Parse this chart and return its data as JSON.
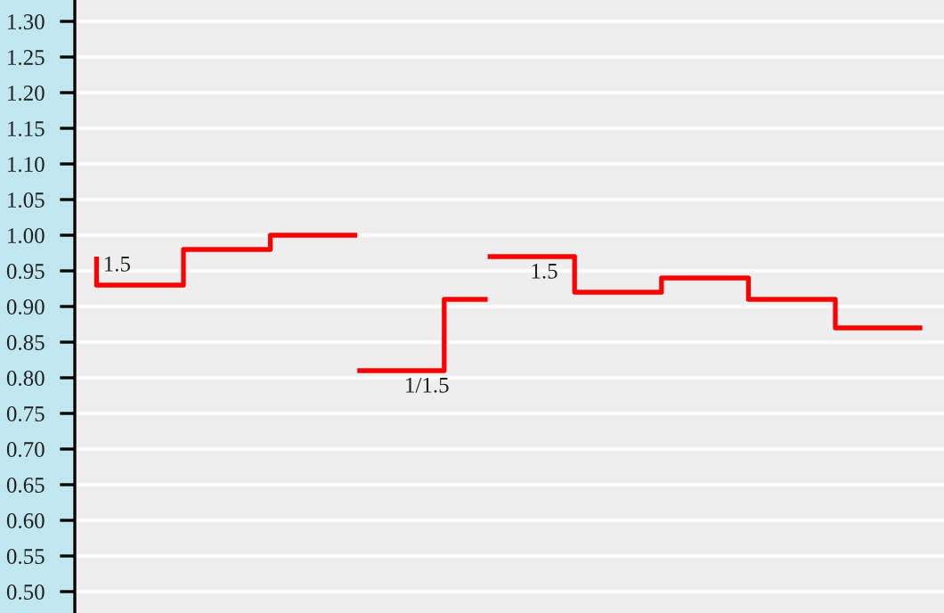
{
  "chart_data": {
    "type": "step",
    "categories": [
      null,
      null,
      null,
      null,
      null,
      null,
      null,
      null,
      null,
      null,
      null,
      null,
      null,
      null,
      null,
      null,
      null,
      null,
      null,
      null
    ],
    "series": [
      {
        "color": "#ff0000",
        "values": [
          0.97,
          0.93,
          0.93,
          0.98,
          0.98,
          1.0,
          1.0,
          null,
          null,
          null,
          null,
          null,
          null,
          null,
          null,
          null,
          null,
          null,
          null,
          null
        ]
      },
      {
        "color": "#ff0000",
        "values": [
          null,
          null,
          null,
          null,
          null,
          null,
          0.81,
          0.81,
          0.81,
          0.91,
          null,
          null,
          null,
          null,
          null,
          null,
          null,
          null,
          null,
          null
        ]
      },
      {
        "color": "#ff0000",
        "values": [
          null,
          null,
          null,
          null,
          null,
          null,
          null,
          null,
          null,
          0.97,
          0.97,
          0.97,
          0.92,
          0.92,
          0.94,
          0.94,
          0.91,
          0.91,
          0.87,
          0.87
        ]
      }
    ],
    "annotations": [
      "1.5",
      "1/1.5",
      "1.5"
    ],
    "ylim": [
      0.47,
      1.33
    ],
    "yticks": [
      {
        "value": 0.5,
        "label": "0.50"
      },
      {
        "value": 0.55,
        "label": "0.55"
      },
      {
        "value": 0.6,
        "label": "0.60"
      },
      {
        "value": 0.65,
        "label": "0.65"
      },
      {
        "value": 0.7,
        "label": "0.70"
      },
      {
        "value": 0.75,
        "label": "0.75"
      },
      {
        "value": 0.8,
        "label": "0.80"
      },
      {
        "value": 0.85,
        "label": "0.85"
      },
      {
        "value": 0.9,
        "label": "0.90"
      },
      {
        "value": 0.95,
        "label": "0.95"
      },
      {
        "value": 1.0,
        "label": "1.00"
      },
      {
        "value": 1.05,
        "label": "1.05"
      },
      {
        "value": 1.1,
        "label": "1.10"
      },
      {
        "value": 1.15,
        "label": "1.15"
      },
      {
        "value": 1.2,
        "label": "1.20"
      },
      {
        "value": 1.25,
        "label": "1.25"
      },
      {
        "value": 1.3,
        "label": "1.30"
      }
    ],
    "grid": "y",
    "tick_labels": "y"
  }
}
